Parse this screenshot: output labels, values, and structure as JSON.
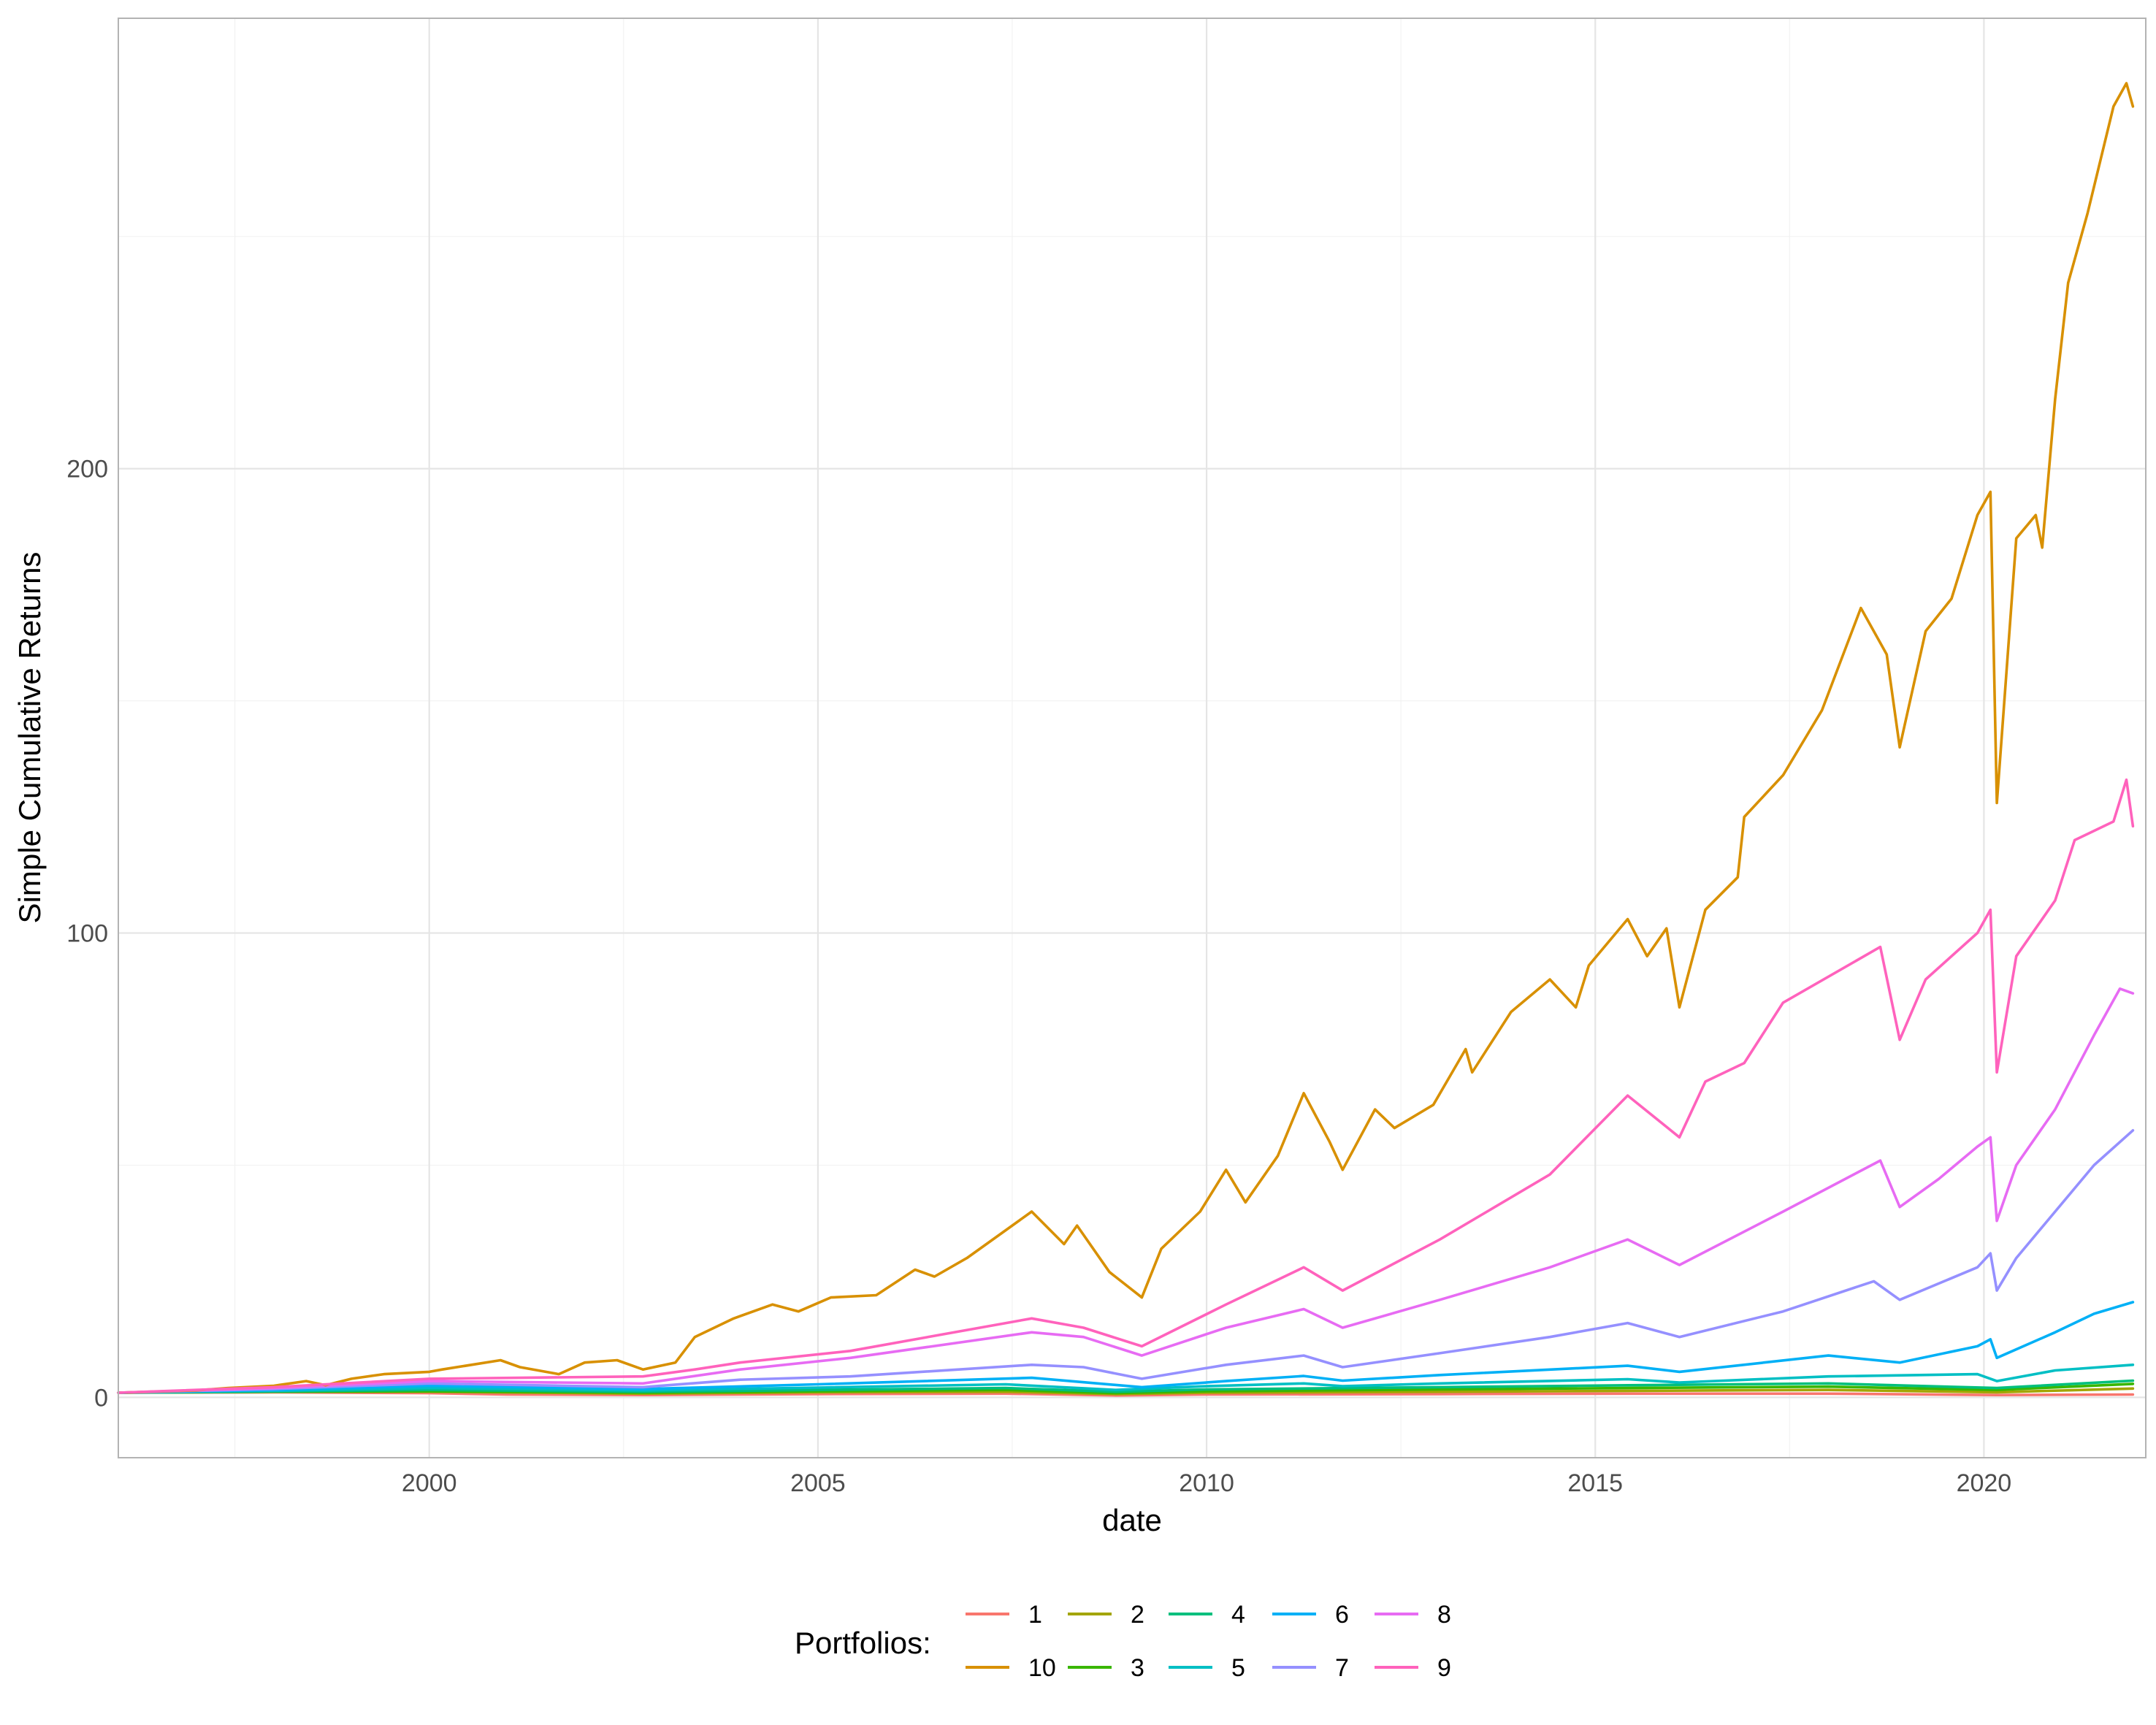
{
  "chart_data": {
    "type": "line",
    "title": "",
    "xlabel": "date",
    "ylabel": "Simple Cumulative Returns",
    "x_ticks": [
      "2000",
      "2005",
      "2010",
      "2015",
      "2020"
    ],
    "y_ticks": [
      "0",
      "100",
      "200"
    ],
    "xlim": [
      "1996-01-01",
      "2021-12-31"
    ],
    "ylim": [
      -13,
      297
    ],
    "grid": true,
    "legend": {
      "title": "Portfolios:",
      "placement": "bottom",
      "entries": [
        "1",
        "10",
        "2",
        "3",
        "4",
        "5",
        "6",
        "7",
        "8",
        "9"
      ]
    },
    "series": [
      {
        "name": "1",
        "color": "#F8766D",
        "points": [
          [
            "1996-01",
            1.0
          ],
          [
            "1998-01",
            1.1
          ],
          [
            "2000-01",
            0.9
          ],
          [
            "2001-01",
            0.6
          ],
          [
            "2002-10",
            0.5
          ],
          [
            "2005-01",
            0.7
          ],
          [
            "2007-06",
            0.8
          ],
          [
            "2008-11",
            0.4
          ],
          [
            "2010-01",
            0.6
          ],
          [
            "2013-01",
            0.7
          ],
          [
            "2015-06",
            0.8
          ],
          [
            "2018-01",
            0.8
          ],
          [
            "2020-03",
            0.5
          ],
          [
            "2021-12",
            0.6
          ]
        ]
      },
      {
        "name": "10",
        "color": "#D89000",
        "points": [
          [
            "1996-01",
            1.0
          ],
          [
            "1996-06",
            1.2
          ],
          [
            "1997-01",
            1.5
          ],
          [
            "1997-06",
            2.0
          ],
          [
            "1998-01",
            2.5
          ],
          [
            "1998-06",
            3.5
          ],
          [
            "1998-09",
            2.6
          ],
          [
            "1999-01",
            4.0
          ],
          [
            "1999-06",
            5.0
          ],
          [
            "2000-01",
            5.5
          ],
          [
            "2000-03",
            6.0
          ],
          [
            "2000-12",
            8.0
          ],
          [
            "2001-03",
            6.5
          ],
          [
            "2001-09",
            5.0
          ],
          [
            "2002-01",
            7.5
          ],
          [
            "2002-06",
            8.0
          ],
          [
            "2002-10",
            6.0
          ],
          [
            "2003-03",
            7.5
          ],
          [
            "2003-06",
            13.0
          ],
          [
            "2003-12",
            17.0
          ],
          [
            "2004-06",
            20.0
          ],
          [
            "2004-10",
            18.5
          ],
          [
            "2005-03",
            21.5
          ],
          [
            "2005-10",
            22.0
          ],
          [
            "2006-04",
            27.5
          ],
          [
            "2006-07",
            26.0
          ],
          [
            "2006-12",
            30.0
          ],
          [
            "2007-06",
            36.0
          ],
          [
            "2007-10",
            40.0
          ],
          [
            "2008-03",
            33.0
          ],
          [
            "2008-05",
            37.0
          ],
          [
            "2008-10",
            27.0
          ],
          [
            "2009-03",
            21.5
          ],
          [
            "2009-06",
            32.0
          ],
          [
            "2009-12",
            40.0
          ],
          [
            "2010-04",
            49.0
          ],
          [
            "2010-07",
            42.0
          ],
          [
            "2010-12",
            52.0
          ],
          [
            "2011-04",
            65.5
          ],
          [
            "2011-08",
            55.0
          ],
          [
            "2011-10",
            49.0
          ],
          [
            "2012-03",
            62.0
          ],
          [
            "2012-06",
            58.0
          ],
          [
            "2012-12",
            63.0
          ],
          [
            "2013-05",
            75.0
          ],
          [
            "2013-06",
            70.0
          ],
          [
            "2013-12",
            83.0
          ],
          [
            "2014-06",
            90.0
          ],
          [
            "2014-10",
            84.0
          ],
          [
            "2014-12",
            93.0
          ],
          [
            "2015-06",
            103.0
          ],
          [
            "2015-09",
            95.0
          ],
          [
            "2015-12",
            101.0
          ],
          [
            "2016-02",
            84.0
          ],
          [
            "2016-06",
            105.0
          ],
          [
            "2016-11",
            112.0
          ],
          [
            "2016-12",
            125.0
          ],
          [
            "2017-06",
            134.0
          ],
          [
            "2017-12",
            148.0
          ],
          [
            "2018-06",
            170.0
          ],
          [
            "2018-10",
            160.0
          ],
          [
            "2018-12",
            140.0
          ],
          [
            "2019-04",
            165.0
          ],
          [
            "2019-08",
            172.0
          ],
          [
            "2019-12",
            190.0
          ],
          [
            "2020-02",
            195.0
          ],
          [
            "2020-03",
            128.0
          ],
          [
            "2020-06",
            185.0
          ],
          [
            "2020-09",
            190.0
          ],
          [
            "2020-10",
            183.0
          ],
          [
            "2020-12",
            215.0
          ],
          [
            "2021-02",
            240.0
          ],
          [
            "2021-05",
            255.0
          ],
          [
            "2021-09",
            278.0
          ],
          [
            "2021-11",
            283.0
          ],
          [
            "2021-12",
            278.0
          ]
        ]
      },
      {
        "name": "2",
        "color": "#A3A500",
        "points": [
          [
            "1996-01",
            1.0
          ],
          [
            "1998-01",
            1.2
          ],
          [
            "2000-01",
            1.2
          ],
          [
            "2002-10",
            0.8
          ],
          [
            "2005-01",
            1.1
          ],
          [
            "2007-06",
            1.2
          ],
          [
            "2008-11",
            0.7
          ],
          [
            "2010-01",
            1.0
          ],
          [
            "2013-01",
            1.2
          ],
          [
            "2015-06",
            1.4
          ],
          [
            "2018-01",
            1.6
          ],
          [
            "2020-03",
            1.1
          ],
          [
            "2021-12",
            1.9
          ]
        ]
      },
      {
        "name": "3",
        "color": "#39B600",
        "points": [
          [
            "1996-01",
            1.0
          ],
          [
            "1998-01",
            1.2
          ],
          [
            "2000-01",
            1.3
          ],
          [
            "2002-10",
            1.0
          ],
          [
            "2005-01",
            1.3
          ],
          [
            "2007-06",
            1.6
          ],
          [
            "2008-11",
            0.9
          ],
          [
            "2010-01",
            1.3
          ],
          [
            "2013-01",
            1.7
          ],
          [
            "2015-06",
            2.0
          ],
          [
            "2018-01",
            2.3
          ],
          [
            "2020-03",
            1.6
          ],
          [
            "2021-12",
            2.9
          ]
        ]
      },
      {
        "name": "4",
        "color": "#00BF7D",
        "points": [
          [
            "1996-01",
            1.0
          ],
          [
            "1998-01",
            1.3
          ],
          [
            "2000-01",
            1.6
          ],
          [
            "2002-10",
            1.2
          ],
          [
            "2005-01",
            1.6
          ],
          [
            "2007-06",
            2.0
          ],
          [
            "2008-11",
            1.2
          ],
          [
            "2010-01",
            1.7
          ],
          [
            "2013-01",
            2.2
          ],
          [
            "2015-06",
            2.6
          ],
          [
            "2018-01",
            3.0
          ],
          [
            "2020-03",
            2.0
          ],
          [
            "2021-12",
            3.6
          ]
        ]
      },
      {
        "name": "5",
        "color": "#00BFC4",
        "points": [
          [
            "1996-01",
            1.0
          ],
          [
            "1998-01",
            1.4
          ],
          [
            "2000-01",
            2.0
          ],
          [
            "2002-10",
            1.5
          ],
          [
            "2005-01",
            2.1
          ],
          [
            "2007-06",
            2.8
          ],
          [
            "2008-11",
            1.6
          ],
          [
            "2010-01",
            2.4
          ],
          [
            "2011-04",
            3.0
          ],
          [
            "2011-10",
            2.4
          ],
          [
            "2013-01",
            3.0
          ],
          [
            "2015-06",
            3.9
          ],
          [
            "2016-02",
            3.2
          ],
          [
            "2018-01",
            4.5
          ],
          [
            "2019-12",
            5.0
          ],
          [
            "2020-03",
            3.5
          ],
          [
            "2020-12",
            5.8
          ],
          [
            "2021-12",
            7.0
          ]
        ]
      },
      {
        "name": "6",
        "color": "#00B0F6",
        "points": [
          [
            "1996-01",
            1.0
          ],
          [
            "1998-01",
            1.6
          ],
          [
            "2000-01",
            2.5
          ],
          [
            "2002-10",
            1.8
          ],
          [
            "2005-01",
            2.8
          ],
          [
            "2007-10",
            4.2
          ],
          [
            "2009-03",
            2.2
          ],
          [
            "2010-04",
            3.5
          ],
          [
            "2011-04",
            4.6
          ],
          [
            "2011-10",
            3.6
          ],
          [
            "2013-01",
            4.8
          ],
          [
            "2015-06",
            6.8
          ],
          [
            "2016-02",
            5.5
          ],
          [
            "2018-01",
            9.0
          ],
          [
            "2018-12",
            7.5
          ],
          [
            "2019-12",
            11.0
          ],
          [
            "2020-02",
            12.5
          ],
          [
            "2020-03",
            8.5
          ],
          [
            "2020-12",
            14.0
          ],
          [
            "2021-06",
            18.0
          ],
          [
            "2021-12",
            20.5
          ]
        ]
      },
      {
        "name": "7",
        "color": "#9590FF",
        "points": [
          [
            "1996-01",
            1.0
          ],
          [
            "1998-01",
            1.8
          ],
          [
            "2000-01",
            3.0
          ],
          [
            "2002-10",
            2.2
          ],
          [
            "2004-01",
            3.8
          ],
          [
            "2005-06",
            4.5
          ],
          [
            "2007-10",
            7.0
          ],
          [
            "2008-06",
            6.5
          ],
          [
            "2009-03",
            4.0
          ],
          [
            "2010-04",
            7.0
          ],
          [
            "2011-04",
            9.0
          ],
          [
            "2011-10",
            6.5
          ],
          [
            "2013-01",
            9.5
          ],
          [
            "2014-06",
            13.0
          ],
          [
            "2015-06",
            16.0
          ],
          [
            "2016-02",
            13.0
          ],
          [
            "2017-06",
            18.5
          ],
          [
            "2018-08",
            25.0
          ],
          [
            "2018-12",
            21.0
          ],
          [
            "2019-12",
            28.0
          ],
          [
            "2020-02",
            31.0
          ],
          [
            "2020-03",
            23.0
          ],
          [
            "2020-06",
            30.0
          ],
          [
            "2020-12",
            40.0
          ],
          [
            "2021-06",
            50.0
          ],
          [
            "2021-12",
            57.5
          ]
        ]
      },
      {
        "name": "8",
        "color": "#E76BF3",
        "points": [
          [
            "1996-01",
            1.0
          ],
          [
            "1998-01",
            2.0
          ],
          [
            "2000-01",
            3.5
          ],
          [
            "2002-10",
            3.0
          ],
          [
            "2004-01",
            6.0
          ],
          [
            "2005-06",
            8.5
          ],
          [
            "2007-10",
            14.0
          ],
          [
            "2008-06",
            13.0
          ],
          [
            "2009-03",
            9.0
          ],
          [
            "2010-04",
            15.0
          ],
          [
            "2011-04",
            19.0
          ],
          [
            "2011-10",
            15.0
          ],
          [
            "2013-01",
            21.0
          ],
          [
            "2014-06",
            28.0
          ],
          [
            "2015-06",
            34.0
          ],
          [
            "2016-02",
            28.5
          ],
          [
            "2017-06",
            40.0
          ],
          [
            "2018-09",
            51.0
          ],
          [
            "2018-12",
            41.0
          ],
          [
            "2019-06",
            47.0
          ],
          [
            "2019-12",
            54.0
          ],
          [
            "2020-02",
            56.0
          ],
          [
            "2020-03",
            38.0
          ],
          [
            "2020-06",
            50.0
          ],
          [
            "2020-12",
            62.0
          ],
          [
            "2021-06",
            78.0
          ],
          [
            "2021-10",
            88.0
          ],
          [
            "2021-12",
            87.0
          ]
        ]
      },
      {
        "name": "9",
        "color": "#FF62BC",
        "points": [
          [
            "1996-01",
            1.0
          ],
          [
            "1998-01",
            2.2
          ],
          [
            "2000-01",
            4.0
          ],
          [
            "2002-10",
            4.5
          ],
          [
            "2003-06",
            6.0
          ],
          [
            "2004-01",
            7.5
          ],
          [
            "2005-06",
            10.0
          ],
          [
            "2007-10",
            17.0
          ],
          [
            "2008-06",
            15.0
          ],
          [
            "2009-03",
            11.0
          ],
          [
            "2010-04",
            20.0
          ],
          [
            "2011-04",
            28.0
          ],
          [
            "2011-10",
            23.0
          ],
          [
            "2013-01",
            34.0
          ],
          [
            "2014-06",
            48.0
          ],
          [
            "2015-06",
            65.0
          ],
          [
            "2016-02",
            56.0
          ],
          [
            "2016-06",
            68.0
          ],
          [
            "2016-12",
            72.0
          ],
          [
            "2017-06",
            85.0
          ],
          [
            "2018-09",
            97.0
          ],
          [
            "2018-12",
            77.0
          ],
          [
            "2019-04",
            90.0
          ],
          [
            "2019-12",
            100.0
          ],
          [
            "2020-02",
            105.0
          ],
          [
            "2020-03",
            70.0
          ],
          [
            "2020-06",
            95.0
          ],
          [
            "2020-12",
            107.0
          ],
          [
            "2021-03",
            120.0
          ],
          [
            "2021-09",
            124.0
          ],
          [
            "2021-11",
            133.0
          ],
          [
            "2021-12",
            123.0
          ]
        ]
      }
    ]
  }
}
